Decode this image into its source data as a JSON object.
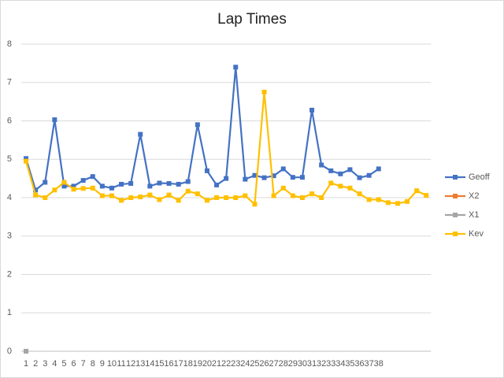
{
  "chart_data": {
    "type": "line",
    "title": "Lap Times",
    "categories": [
      "1",
      "2",
      "3",
      "4",
      "5",
      "6",
      "7",
      "8",
      "9",
      "10",
      "11",
      "12",
      "13",
      "14",
      "15",
      "16",
      "17",
      "18",
      "19",
      "20",
      "21",
      "22",
      "23",
      "24",
      "25",
      "26",
      "27",
      "28",
      "29",
      "30",
      "31",
      "32",
      "33",
      "34",
      "35",
      "36",
      "37",
      "38",
      null,
      null,
      null,
      null,
      null
    ],
    "series": [
      {
        "name": "Geoff",
        "color": "#4472c4",
        "values": [
          5.02,
          4.2,
          4.4,
          6.03,
          4.3,
          4.3,
          4.45,
          4.55,
          4.3,
          4.25,
          4.35,
          4.37,
          5.65,
          4.3,
          4.38,
          4.37,
          4.35,
          4.42,
          5.9,
          4.7,
          4.33,
          4.5,
          7.4,
          4.48,
          4.58,
          4.52,
          4.57,
          4.75,
          4.53,
          4.53,
          6.28,
          4.85,
          4.7,
          4.62,
          4.73,
          4.52,
          4.58,
          4.75,
          null,
          null,
          null,
          null,
          null
        ]
      },
      {
        "name": "X2",
        "color": "#ed7d31",
        "values": [
          0,
          null,
          null,
          null,
          null,
          null,
          null,
          null,
          null,
          null,
          null,
          null,
          null,
          null,
          null,
          null,
          null,
          null,
          null,
          null,
          null,
          null,
          null,
          null,
          null,
          null,
          null,
          null,
          null,
          null,
          null,
          null,
          null,
          null,
          null,
          null,
          null,
          null,
          null,
          null,
          null,
          null,
          null
        ]
      },
      {
        "name": "X1",
        "color": "#a5a5a5",
        "values": [
          0,
          null,
          null,
          null,
          null,
          null,
          null,
          null,
          null,
          null,
          null,
          null,
          null,
          null,
          null,
          null,
          null,
          null,
          null,
          null,
          null,
          null,
          null,
          null,
          null,
          null,
          null,
          null,
          null,
          null,
          null,
          null,
          null,
          null,
          null,
          null,
          null,
          null,
          null,
          null,
          null,
          null,
          null
        ]
      },
      {
        "name": "Kev",
        "color": "#ffc000",
        "values": [
          4.95,
          4.07,
          4.0,
          4.2,
          4.4,
          4.22,
          4.24,
          4.25,
          4.05,
          4.05,
          3.93,
          4.0,
          4.02,
          4.07,
          3.95,
          4.07,
          3.93,
          4.17,
          4.1,
          3.93,
          4.0,
          4.0,
          4.0,
          4.05,
          3.83,
          6.75,
          4.05,
          4.25,
          4.05,
          4.0,
          4.1,
          4.0,
          4.38,
          4.3,
          4.25,
          4.1,
          3.95,
          3.95,
          3.87,
          3.85,
          3.9,
          4.18,
          4.06
        ]
      }
    ],
    "ylim": [
      0,
      8
    ],
    "yticks": [
      0,
      1,
      2,
      3,
      4,
      5,
      6,
      7,
      8
    ],
    "grid": true,
    "legend": "right"
  }
}
